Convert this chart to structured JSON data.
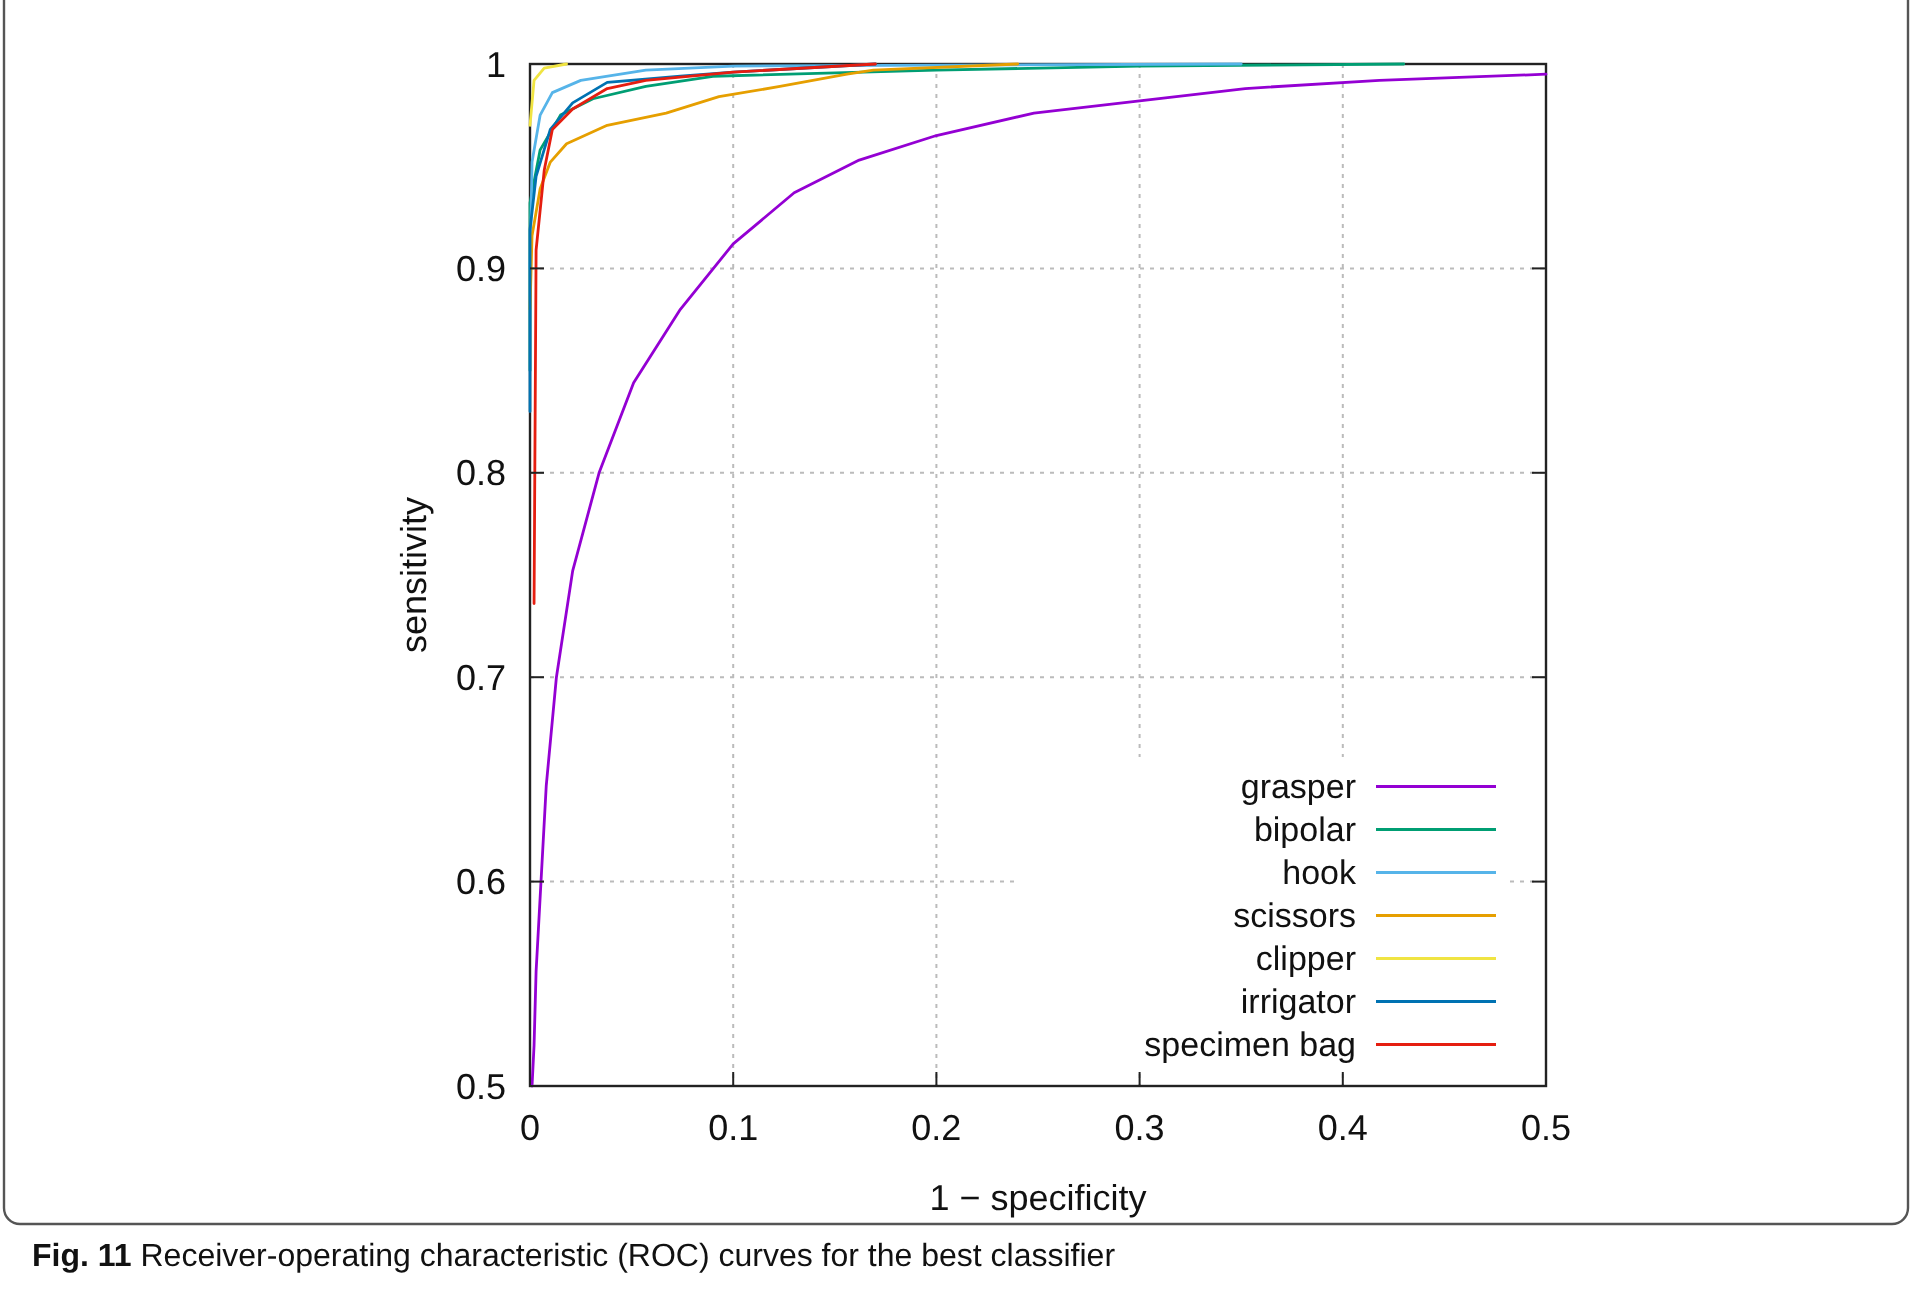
{
  "chart_data": {
    "type": "line",
    "xlabel": "1 − specificity",
    "ylabel": "sensitivity",
    "annotations": [
      "Fig. 11  Receiver-operating characteristic (ROC) curves for the best classifier"
    ],
    "xlim": [
      0,
      0.5
    ],
    "ylim": [
      0.5,
      1
    ],
    "xticks": [
      0,
      0.1,
      0.2,
      0.3,
      0.4,
      0.5
    ],
    "yticks": [
      0.5,
      0.6,
      0.7,
      0.8,
      0.9,
      1
    ],
    "grid": true,
    "legend": "bottom right",
    "line_style": "solid",
    "series": [
      {
        "name": "grasper",
        "color": "#9400d3",
        "x": [
          0.001,
          0.002,
          0.003,
          0.008,
          0.013,
          0.021,
          0.034,
          0.051,
          0.074,
          0.1,
          0.13,
          0.162,
          0.2,
          0.248,
          0.3,
          0.352,
          0.418,
          0.5
        ],
        "values": [
          0.5,
          0.52,
          0.556,
          0.647,
          0.7,
          0.752,
          0.8,
          0.844,
          0.88,
          0.912,
          0.937,
          0.953,
          0.965,
          0.976,
          0.982,
          0.988,
          0.992,
          0.995
        ]
      },
      {
        "name": "bipolar",
        "color": "#009e73",
        "x": [
          0,
          0,
          0.005,
          0.015,
          0.031,
          0.057,
          0.09,
          0.2,
          0.3,
          0.43
        ],
        "values": [
          0.85,
          0.932,
          0.958,
          0.975,
          0.983,
          0.989,
          0.994,
          0.997,
          0.999,
          1
        ]
      },
      {
        "name": "hook",
        "color": "#56b4e9",
        "x": [
          0,
          0.001,
          0.005,
          0.011,
          0.025,
          0.057,
          0.1,
          0.35
        ],
        "values": [
          0.9,
          0.952,
          0.975,
          0.986,
          0.992,
          0.997,
          0.999,
          1
        ]
      },
      {
        "name": "scissors",
        "color": "#e69f00",
        "x": [
          0,
          0.001,
          0.005,
          0.01,
          0.018,
          0.038,
          0.067,
          0.093,
          0.123,
          0.156,
          0.169,
          0.24
        ],
        "values": [
          0.88,
          0.916,
          0.939,
          0.952,
          0.961,
          0.97,
          0.976,
          0.984,
          0.989,
          0.995,
          0.997,
          1
        ]
      },
      {
        "name": "clipper",
        "color": "#f0e442",
        "x": [
          0,
          0.002,
          0.007,
          0.018
        ],
        "values": [
          0.97,
          0.992,
          0.998,
          1
        ]
      },
      {
        "name": "irrigator",
        "color": "#0072b2",
        "x": [
          0,
          0,
          0.003,
          0.01,
          0.021,
          0.038,
          0.074,
          0.1,
          0.17
        ],
        "values": [
          0.83,
          0.919,
          0.945,
          0.968,
          0.981,
          0.991,
          0.994,
          0.996,
          1
        ]
      },
      {
        "name": "specimen bag",
        "color": "#e51e10",
        "x": [
          0.002,
          0.003,
          0.007,
          0.011,
          0.021,
          0.038,
          0.057,
          0.1,
          0.17
        ],
        "values": [
          0.736,
          0.909,
          0.948,
          0.968,
          0.978,
          0.988,
          0.992,
          0.996,
          1
        ]
      }
    ]
  }
}
